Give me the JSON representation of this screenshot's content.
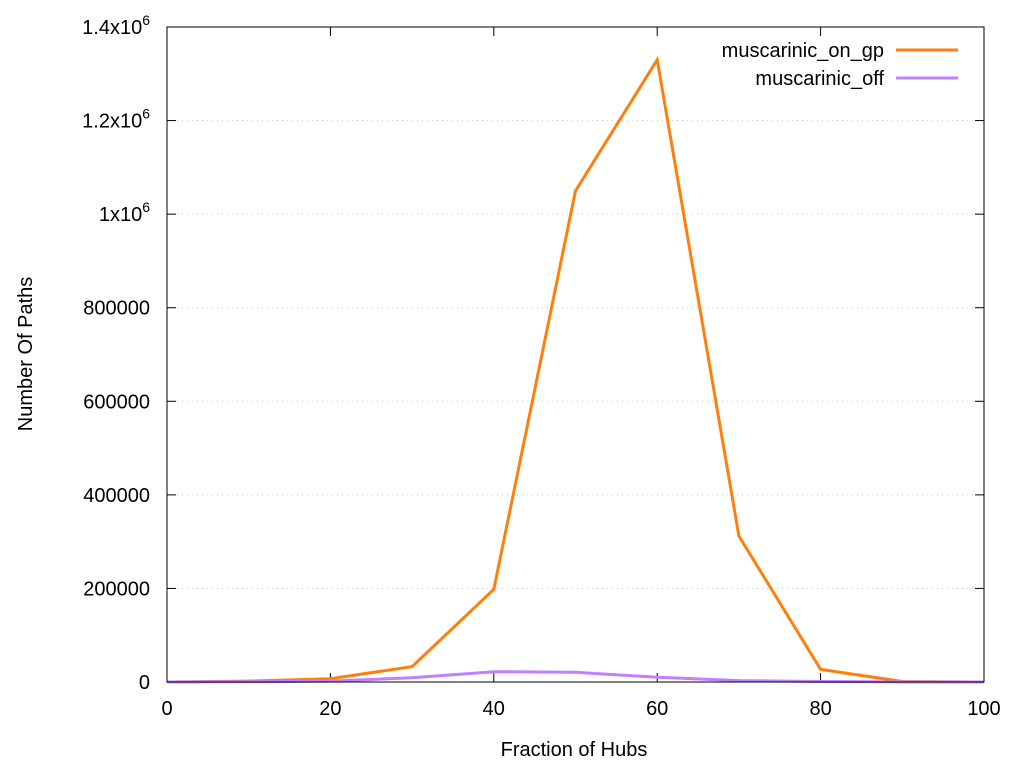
{
  "chart_data": {
    "type": "line",
    "xlabel": "Fraction of Hubs",
    "ylabel": "Number Of Paths",
    "xlim": [
      0,
      100
    ],
    "ylim": [
      0,
      1400000
    ],
    "grid": "horizontal dotted",
    "legend_position": "top-right",
    "x_ticks": [
      {
        "value": 0,
        "label": "0"
      },
      {
        "value": 20,
        "label": "20"
      },
      {
        "value": 40,
        "label": "40"
      },
      {
        "value": 60,
        "label": "60"
      },
      {
        "value": 80,
        "label": "80"
      },
      {
        "value": 100,
        "label": "100"
      }
    ],
    "y_ticks": [
      {
        "value": 0,
        "label": "0"
      },
      {
        "value": 200000,
        "label": "200000"
      },
      {
        "value": 400000,
        "label": "400000"
      },
      {
        "value": 600000,
        "label": "600000"
      },
      {
        "value": 800000,
        "label": "800000"
      },
      {
        "value": 1000000,
        "label": "1x10",
        "sup": "6"
      },
      {
        "value": 1200000,
        "label": "1.2x10",
        "sup": "6"
      },
      {
        "value": 1400000,
        "label": "1.4x10",
        "sup": "6"
      }
    ],
    "x": [
      0,
      10,
      20,
      30,
      40,
      50,
      60,
      70,
      80,
      90,
      100
    ],
    "series": [
      {
        "name": "muscarinic_on_gp",
        "color": "#ff7f0e",
        "values": [
          0,
          2000,
          7000,
          33000,
          198000,
          1050000,
          1330000,
          312000,
          27000,
          1000,
          0
        ]
      },
      {
        "name": "muscarinic_off",
        "color": "#c080ff",
        "values": [
          0,
          500,
          2000,
          9000,
          22000,
          21000,
          10000,
          3000,
          1000,
          0,
          0
        ]
      }
    ]
  }
}
